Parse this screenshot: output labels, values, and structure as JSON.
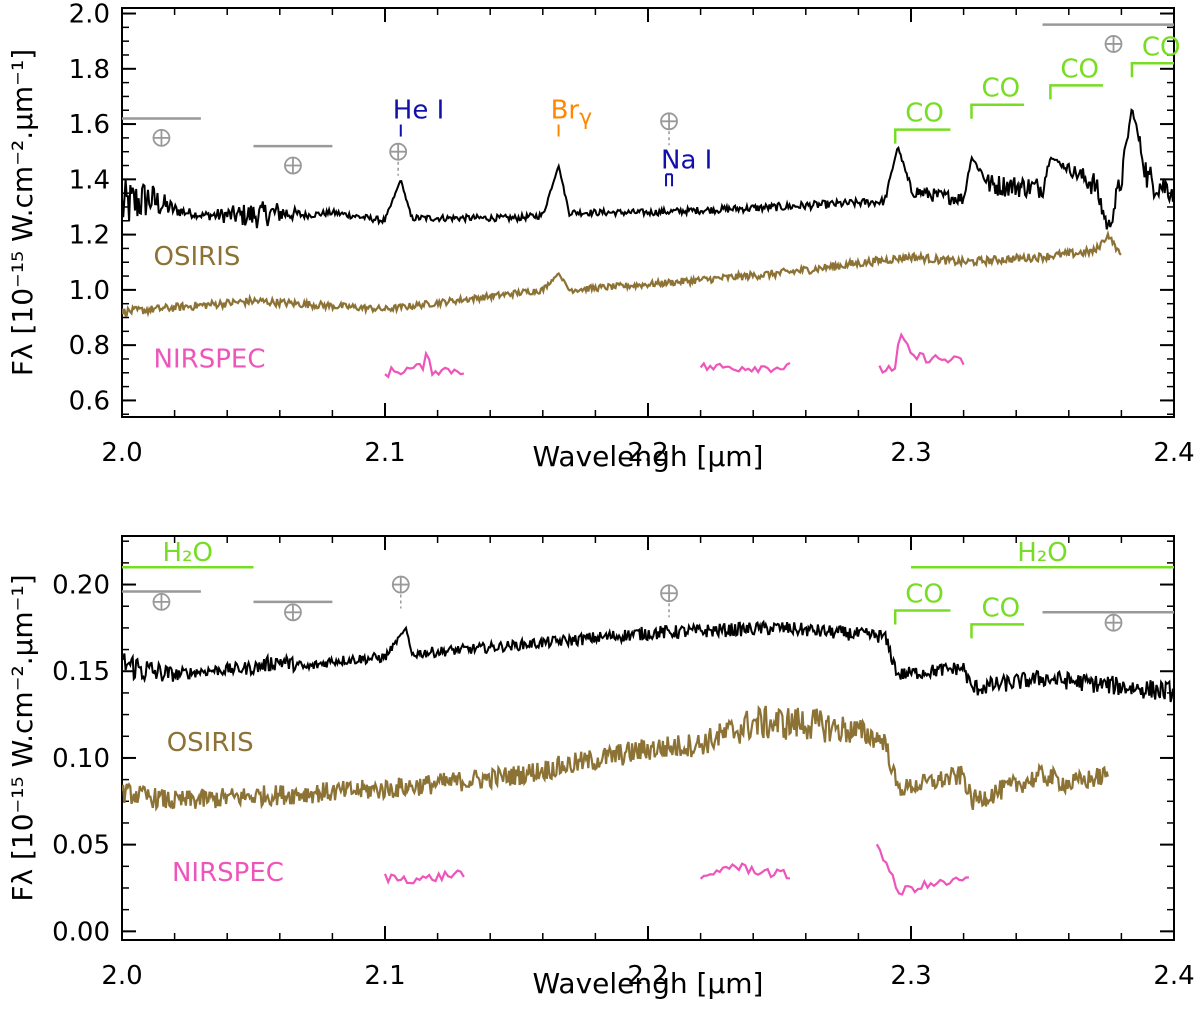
{
  "chart_data": [
    {
      "type": "line",
      "xlabel": "Wavelengh [μm]",
      "ylabel": "Fλ [10⁻¹⁵ W.cm⁻².μm⁻¹]",
      "xlim": [
        2.0,
        2.4
      ],
      "ylim": [
        0.54,
        2.02
      ],
      "xticks": [
        2.0,
        2.1,
        2.2,
        2.3,
        2.4
      ],
      "xtick_labels": [
        "2.0",
        "2.1",
        "2.2",
        "2.3",
        "2.4"
      ],
      "yticks": [
        0.6,
        0.8,
        1.0,
        1.2,
        1.4,
        1.6,
        1.8,
        2.0
      ],
      "ytick_labels": [
        "0.6",
        "0.8",
        "1.0",
        "1.2",
        "1.4",
        "1.6",
        "1.8",
        "2.0"
      ],
      "grid": false,
      "series": [
        {
          "name": "",
          "color": "#000000",
          "x": [
            2.0,
            2.01,
            2.02,
            2.03,
            2.05,
            2.06,
            2.07,
            2.08,
            2.1,
            2.106,
            2.11,
            2.15,
            2.16,
            2.166,
            2.17,
            2.2,
            2.25,
            2.29,
            2.295,
            2.3,
            2.31,
            2.32,
            2.323,
            2.33,
            2.35,
            2.353,
            2.37,
            2.375,
            2.38,
            2.384,
            2.39,
            2.4
          ],
          "y": [
            1.3,
            1.33,
            1.29,
            1.27,
            1.27,
            1.28,
            1.27,
            1.28,
            1.25,
            1.4,
            1.26,
            1.26,
            1.27,
            1.45,
            1.28,
            1.28,
            1.3,
            1.32,
            1.52,
            1.36,
            1.34,
            1.33,
            1.48,
            1.38,
            1.37,
            1.48,
            1.38,
            1.22,
            1.4,
            1.66,
            1.4,
            1.36
          ],
          "noise": [
            0.1,
            0.07,
            0.025,
            0.012,
            0.05,
            0.04,
            0.012,
            0.012,
            0.012,
            0.0,
            0.012,
            0.012,
            0.012,
            0.0,
            0.012,
            0.012,
            0.015,
            0.015,
            0.0,
            0.025,
            0.025,
            0.025,
            0.0,
            0.04,
            0.04,
            0.0,
            0.05,
            0.03,
            0.05,
            0.0,
            0.06,
            0.05
          ]
        },
        {
          "name": "OSIRIS",
          "color": "#8c7335",
          "x": [
            2.0,
            2.05,
            2.1,
            2.16,
            2.166,
            2.17,
            2.2,
            2.25,
            2.3,
            2.32,
            2.35,
            2.37,
            2.375,
            2.38
          ],
          "y": [
            0.92,
            0.96,
            0.93,
            1.0,
            1.06,
            1.0,
            1.02,
            1.06,
            1.12,
            1.1,
            1.12,
            1.14,
            1.2,
            1.12
          ],
          "noise": [
            0.015,
            0.015,
            0.012,
            0.012,
            0.0,
            0.012,
            0.012,
            0.015,
            0.015,
            0.015,
            0.015,
            0.015,
            0.01,
            0.01
          ]
        },
        {
          "name": "NIRSPEC",
          "color": "#ee55bb",
          "segments": [
            {
              "x": [
                2.1,
                2.114,
                2.116,
                2.118,
                2.13
              ],
              "y": [
                0.7,
                0.72,
                0.76,
                0.71,
                0.71
              ]
            },
            {
              "x": [
                2.22,
                2.24,
                2.254
              ],
              "y": [
                0.72,
                0.72,
                0.72
              ]
            },
            {
              "x": [
                2.288,
                2.294,
                2.296,
                2.3,
                2.32
              ],
              "y": [
                0.71,
                0.72,
                0.84,
                0.76,
                0.74
              ]
            }
          ]
        }
      ],
      "annotations": {
        "series_labels": [
          {
            "text": "OSIRIS",
            "x": 2.012,
            "y": 1.09,
            "color": "#8c7335"
          },
          {
            "text": "NIRSPEC",
            "x": 2.012,
            "y": 0.72,
            "color": "#ee55bb"
          }
        ],
        "lines": [
          {
            "label": "He  I",
            "x": 2.106,
            "y": 1.62,
            "color": "#1111aa"
          },
          {
            "label": "Br",
            "greek": "γ",
            "x": 2.166,
            "y": 1.62,
            "color": "#ff8800"
          },
          {
            "label": "Na  I",
            "x": 2.208,
            "y": 1.44,
            "color": "#1111aa"
          }
        ],
        "co_bands": [
          {
            "label": "CO",
            "x1": 2.294,
            "x2": 2.315,
            "y": 1.58,
            "color": "#77dd22"
          },
          {
            "label": "CO",
            "x1": 2.323,
            "x2": 2.343,
            "y": 1.67,
            "color": "#77dd22"
          },
          {
            "label": "CO",
            "x1": 2.353,
            "x2": 2.373,
            "y": 1.74,
            "color": "#77dd22"
          },
          {
            "label": "CO",
            "x1": 2.384,
            "x2": 2.4,
            "y": 1.82,
            "color": "#77dd22"
          }
        ],
        "telluric_bars": [
          {
            "x1": 2.0,
            "x2": 2.03,
            "y": 1.62,
            "mark_x": 2.015,
            "mark_y": 1.55
          },
          {
            "x1": 2.05,
            "x2": 2.08,
            "y": 1.52,
            "mark_x": 2.065,
            "mark_y": 1.45
          },
          {
            "x1": 2.35,
            "x2": 2.4,
            "y": 1.96,
            "mark_x": 2.377,
            "mark_y": 1.89
          }
        ],
        "telluric_points": [
          {
            "x": 2.105,
            "y": 1.5
          },
          {
            "x": 2.208,
            "y": 1.61
          }
        ]
      }
    },
    {
      "type": "line",
      "xlabel": "Wavelengh [μm]",
      "ylabel": "Fλ [10⁻¹⁵ W.cm⁻².μm⁻¹]",
      "xlim": [
        2.0,
        2.4
      ],
      "ylim": [
        -0.005,
        0.228
      ],
      "xticks": [
        2.0,
        2.1,
        2.2,
        2.3,
        2.4
      ],
      "xtick_labels": [
        "2.0",
        "2.1",
        "2.2",
        "2.3",
        "2.4"
      ],
      "yticks": [
        0.0,
        0.05,
        0.1,
        0.15,
        0.2
      ],
      "ytick_labels": [
        "0.00",
        "0.05",
        "0.10",
        "0.15",
        "0.20"
      ],
      "grid": false,
      "series": [
        {
          "name": "",
          "color": "#000000",
          "x": [
            2.0,
            2.01,
            2.02,
            2.03,
            2.05,
            2.06,
            2.07,
            2.08,
            2.1,
            2.108,
            2.11,
            2.15,
            2.2,
            2.25,
            2.29,
            2.295,
            2.32,
            2.323,
            2.35,
            2.4
          ],
          "y": [
            0.155,
            0.15,
            0.148,
            0.15,
            0.152,
            0.156,
            0.152,
            0.156,
            0.158,
            0.175,
            0.16,
            0.165,
            0.172,
            0.175,
            0.17,
            0.148,
            0.152,
            0.14,
            0.146,
            0.138
          ],
          "noise": [
            0.008,
            0.008,
            0.004,
            0.003,
            0.004,
            0.005,
            0.003,
            0.003,
            0.003,
            0.0,
            0.003,
            0.003,
            0.004,
            0.004,
            0.004,
            0.004,
            0.004,
            0.005,
            0.005,
            0.006
          ]
        },
        {
          "name": "OSIRIS",
          "color": "#8c7335",
          "x": [
            2.0,
            2.02,
            2.05,
            2.1,
            2.15,
            2.2,
            2.22,
            2.24,
            2.26,
            2.28,
            2.29,
            2.295,
            2.32,
            2.323,
            2.35,
            2.36,
            2.375
          ],
          "y": [
            0.08,
            0.075,
            0.078,
            0.082,
            0.09,
            0.105,
            0.108,
            0.12,
            0.12,
            0.115,
            0.11,
            0.082,
            0.09,
            0.075,
            0.09,
            0.085,
            0.09
          ],
          "noise": [
            0.006,
            0.006,
            0.006,
            0.006,
            0.006,
            0.007,
            0.007,
            0.01,
            0.01,
            0.008,
            0.006,
            0.005,
            0.006,
            0.006,
            0.006,
            0.006,
            0.006
          ]
        },
        {
          "name": "NIRSPEC",
          "color": "#ee55bb",
          "segments": [
            {
              "x": [
                2.1,
                2.115,
                2.13
              ],
              "y": [
                0.031,
                0.03,
                0.034
              ]
            },
            {
              "x": [
                2.22,
                2.23,
                2.254
              ],
              "y": [
                0.028,
                0.038,
                0.032
              ]
            },
            {
              "x": [
                2.287,
                2.29,
                2.295,
                2.3,
                2.322
              ],
              "y": [
                0.05,
                0.042,
                0.022,
                0.025,
                0.03
              ]
            }
          ]
        }
      ],
      "annotations": {
        "series_labels": [
          {
            "text": "OSIRIS",
            "x": 2.017,
            "y": 0.104,
            "color": "#8c7335"
          },
          {
            "text": "NIRSPEC",
            "x": 2.019,
            "y": 0.029,
            "color": "#ee55bb"
          }
        ],
        "h2o_bands": [
          {
            "label": "H₂O",
            "x1": 2.0,
            "x2": 2.05,
            "y": 0.21,
            "color": "#77dd22"
          },
          {
            "label": "H₂O",
            "x1": 2.3,
            "x2": 2.4,
            "y": 0.21,
            "color": "#77dd22"
          }
        ],
        "co_bands": [
          {
            "label": "CO",
            "x1": 2.294,
            "x2": 2.315,
            "y": 0.185,
            "color": "#77dd22"
          },
          {
            "label": "CO",
            "x1": 2.323,
            "x2": 2.343,
            "y": 0.177,
            "color": "#77dd22"
          }
        ],
        "telluric_bars": [
          {
            "x1": 2.0,
            "x2": 2.03,
            "y": 0.196,
            "mark_x": 2.015,
            "mark_y": 0.19
          },
          {
            "x1": 2.05,
            "x2": 2.08,
            "y": 0.19,
            "mark_x": 2.065,
            "mark_y": 0.184
          },
          {
            "x1": 2.35,
            "x2": 2.4,
            "y": 0.184,
            "mark_x": 2.377,
            "mark_y": 0.178
          }
        ],
        "telluric_points": [
          {
            "x": 2.106,
            "y": 0.2
          },
          {
            "x": 2.208,
            "y": 0.195
          }
        ]
      }
    }
  ]
}
